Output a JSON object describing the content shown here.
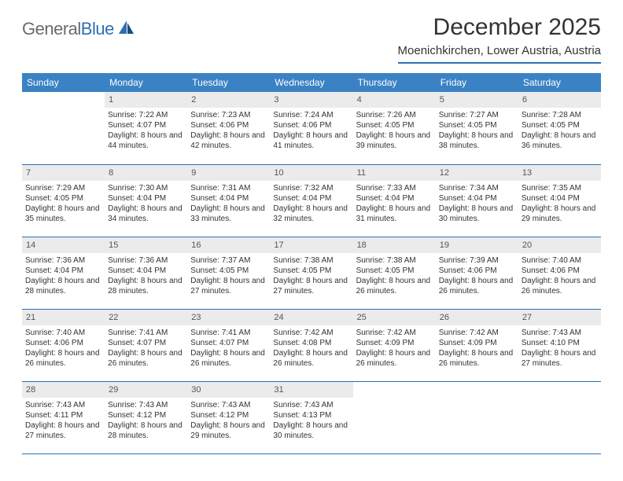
{
  "logo": {
    "part1": "General",
    "part2": "Blue"
  },
  "title": "December 2025",
  "location": "Moenichkirchen, Lower Austria, Austria",
  "colors": {
    "header_bg": "#3b82c4",
    "header_text": "#ffffff",
    "accent": "#2d6fb5",
    "daynum_bg": "#ebebeb",
    "text": "#333333",
    "logo_gray": "#6b6b6b"
  },
  "weekdays": [
    "Sunday",
    "Monday",
    "Tuesday",
    "Wednesday",
    "Thursday",
    "Friday",
    "Saturday"
  ],
  "first_weekday_index": 1,
  "days": [
    {
      "n": 1,
      "sunrise": "7:22 AM",
      "sunset": "4:07 PM",
      "daylight": "8 hours and 44 minutes."
    },
    {
      "n": 2,
      "sunrise": "7:23 AM",
      "sunset": "4:06 PM",
      "daylight": "8 hours and 42 minutes."
    },
    {
      "n": 3,
      "sunrise": "7:24 AM",
      "sunset": "4:06 PM",
      "daylight": "8 hours and 41 minutes."
    },
    {
      "n": 4,
      "sunrise": "7:26 AM",
      "sunset": "4:05 PM",
      "daylight": "8 hours and 39 minutes."
    },
    {
      "n": 5,
      "sunrise": "7:27 AM",
      "sunset": "4:05 PM",
      "daylight": "8 hours and 38 minutes."
    },
    {
      "n": 6,
      "sunrise": "7:28 AM",
      "sunset": "4:05 PM",
      "daylight": "8 hours and 36 minutes."
    },
    {
      "n": 7,
      "sunrise": "7:29 AM",
      "sunset": "4:05 PM",
      "daylight": "8 hours and 35 minutes."
    },
    {
      "n": 8,
      "sunrise": "7:30 AM",
      "sunset": "4:04 PM",
      "daylight": "8 hours and 34 minutes."
    },
    {
      "n": 9,
      "sunrise": "7:31 AM",
      "sunset": "4:04 PM",
      "daylight": "8 hours and 33 minutes."
    },
    {
      "n": 10,
      "sunrise": "7:32 AM",
      "sunset": "4:04 PM",
      "daylight": "8 hours and 32 minutes."
    },
    {
      "n": 11,
      "sunrise": "7:33 AM",
      "sunset": "4:04 PM",
      "daylight": "8 hours and 31 minutes."
    },
    {
      "n": 12,
      "sunrise": "7:34 AM",
      "sunset": "4:04 PM",
      "daylight": "8 hours and 30 minutes."
    },
    {
      "n": 13,
      "sunrise": "7:35 AM",
      "sunset": "4:04 PM",
      "daylight": "8 hours and 29 minutes."
    },
    {
      "n": 14,
      "sunrise": "7:36 AM",
      "sunset": "4:04 PM",
      "daylight": "8 hours and 28 minutes."
    },
    {
      "n": 15,
      "sunrise": "7:36 AM",
      "sunset": "4:04 PM",
      "daylight": "8 hours and 28 minutes."
    },
    {
      "n": 16,
      "sunrise": "7:37 AM",
      "sunset": "4:05 PM",
      "daylight": "8 hours and 27 minutes."
    },
    {
      "n": 17,
      "sunrise": "7:38 AM",
      "sunset": "4:05 PM",
      "daylight": "8 hours and 27 minutes."
    },
    {
      "n": 18,
      "sunrise": "7:38 AM",
      "sunset": "4:05 PM",
      "daylight": "8 hours and 26 minutes."
    },
    {
      "n": 19,
      "sunrise": "7:39 AM",
      "sunset": "4:06 PM",
      "daylight": "8 hours and 26 minutes."
    },
    {
      "n": 20,
      "sunrise": "7:40 AM",
      "sunset": "4:06 PM",
      "daylight": "8 hours and 26 minutes."
    },
    {
      "n": 21,
      "sunrise": "7:40 AM",
      "sunset": "4:06 PM",
      "daylight": "8 hours and 26 minutes."
    },
    {
      "n": 22,
      "sunrise": "7:41 AM",
      "sunset": "4:07 PM",
      "daylight": "8 hours and 26 minutes."
    },
    {
      "n": 23,
      "sunrise": "7:41 AM",
      "sunset": "4:07 PM",
      "daylight": "8 hours and 26 minutes."
    },
    {
      "n": 24,
      "sunrise": "7:42 AM",
      "sunset": "4:08 PM",
      "daylight": "8 hours and 26 minutes."
    },
    {
      "n": 25,
      "sunrise": "7:42 AM",
      "sunset": "4:09 PM",
      "daylight": "8 hours and 26 minutes."
    },
    {
      "n": 26,
      "sunrise": "7:42 AM",
      "sunset": "4:09 PM",
      "daylight": "8 hours and 26 minutes."
    },
    {
      "n": 27,
      "sunrise": "7:43 AM",
      "sunset": "4:10 PM",
      "daylight": "8 hours and 27 minutes."
    },
    {
      "n": 28,
      "sunrise": "7:43 AM",
      "sunset": "4:11 PM",
      "daylight": "8 hours and 27 minutes."
    },
    {
      "n": 29,
      "sunrise": "7:43 AM",
      "sunset": "4:12 PM",
      "daylight": "8 hours and 28 minutes."
    },
    {
      "n": 30,
      "sunrise": "7:43 AM",
      "sunset": "4:12 PM",
      "daylight": "8 hours and 29 minutes."
    },
    {
      "n": 31,
      "sunrise": "7:43 AM",
      "sunset": "4:13 PM",
      "daylight": "8 hours and 30 minutes."
    }
  ],
  "labels": {
    "sunrise": "Sunrise:",
    "sunset": "Sunset:",
    "daylight": "Daylight:"
  }
}
